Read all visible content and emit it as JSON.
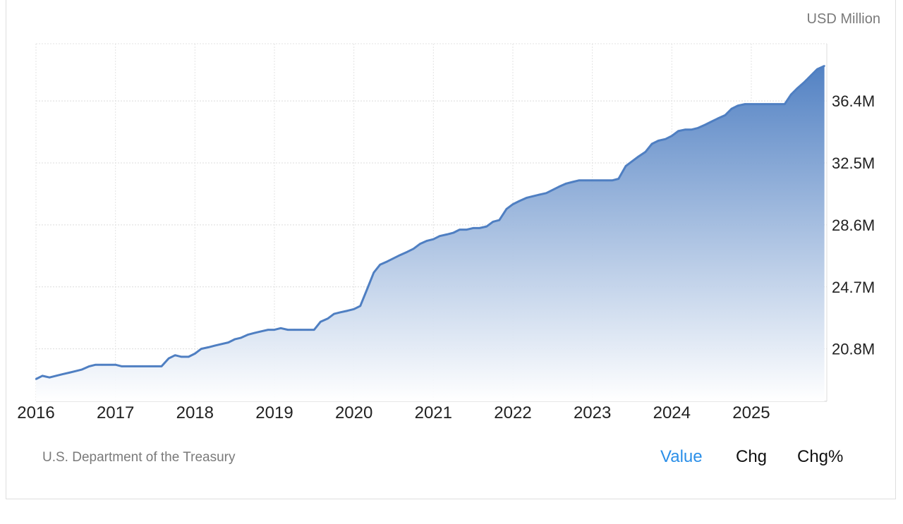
{
  "unit_label": "USD Million",
  "source": "U.S. Department of the Treasury",
  "toggles": [
    "Value",
    "Chg",
    "Chg%"
  ],
  "active_toggle": "Value",
  "colors": {
    "line": "#4f7fc2",
    "fill_top": "#4f7fc2",
    "fill_bottom": "#ffffff",
    "grid": "#d9d9d9",
    "active_toggle": "#2b8fe8"
  },
  "chart_data": {
    "type": "area",
    "title": "",
    "xlabel": "",
    "ylabel": "",
    "y_tick_labels": [
      "20.8M",
      "24.7M",
      "28.6M",
      "32.5M",
      "36.4M"
    ],
    "y_ticks": [
      20.8,
      24.7,
      28.6,
      32.5,
      36.4
    ],
    "ylim": [
      17.5,
      40.0
    ],
    "x_tick_labels": [
      "2016",
      "2017",
      "2018",
      "2019",
      "2020",
      "2021",
      "2022",
      "2023",
      "2024",
      "2025"
    ],
    "xlim": [
      2016.0,
      2025.95
    ],
    "grid": true,
    "series": [
      {
        "x": [
          2016.0,
          2016.08,
          2016.17,
          2016.25,
          2016.33,
          2016.42,
          2016.5,
          2016.58,
          2016.67,
          2016.75,
          2016.83,
          2016.92,
          2017.0,
          2017.08,
          2017.17,
          2017.25,
          2017.33,
          2017.42,
          2017.5,
          2017.58,
          2017.67,
          2017.75,
          2017.83,
          2017.92,
          2018.0,
          2018.08,
          2018.17,
          2018.25,
          2018.33,
          2018.42,
          2018.5,
          2018.58,
          2018.67,
          2018.75,
          2018.83,
          2018.92,
          2019.0,
          2019.08,
          2019.17,
          2019.25,
          2019.33,
          2019.42,
          2019.5,
          2019.58,
          2019.67,
          2019.75,
          2019.83,
          2019.92,
          2020.0,
          2020.08,
          2020.17,
          2020.25,
          2020.33,
          2020.42,
          2020.5,
          2020.58,
          2020.67,
          2020.75,
          2020.83,
          2020.92,
          2021.0,
          2021.08,
          2021.17,
          2021.25,
          2021.33,
          2021.42,
          2021.5,
          2021.58,
          2021.67,
          2021.75,
          2021.83,
          2021.92,
          2022.0,
          2022.08,
          2022.17,
          2022.25,
          2022.33,
          2022.42,
          2022.5,
          2022.58,
          2022.67,
          2022.75,
          2022.83,
          2022.92,
          2023.0,
          2023.08,
          2023.17,
          2023.25,
          2023.33,
          2023.42,
          2023.5,
          2023.58,
          2023.67,
          2023.75,
          2023.83,
          2023.92,
          2024.0,
          2024.08,
          2024.17,
          2024.25,
          2024.33,
          2024.42,
          2024.5,
          2024.58,
          2024.67,
          2024.75,
          2024.83,
          2024.92,
          2025.0,
          2025.08,
          2025.17,
          2025.25,
          2025.33,
          2025.42,
          2025.5,
          2025.58,
          2025.67,
          2025.75,
          2025.83,
          2025.92
        ],
        "values": [
          18.9,
          19.1,
          19.0,
          19.1,
          19.2,
          19.3,
          19.4,
          19.5,
          19.7,
          19.8,
          19.8,
          19.8,
          19.8,
          19.7,
          19.7,
          19.7,
          19.7,
          19.7,
          19.7,
          19.7,
          20.2,
          20.4,
          20.3,
          20.3,
          20.5,
          20.8,
          20.9,
          21.0,
          21.1,
          21.2,
          21.4,
          21.5,
          21.7,
          21.8,
          21.9,
          22.0,
          22.0,
          22.1,
          22.0,
          22.0,
          22.0,
          22.0,
          22.0,
          22.5,
          22.7,
          23.0,
          23.1,
          23.2,
          23.3,
          23.5,
          24.6,
          25.6,
          26.1,
          26.3,
          26.5,
          26.7,
          26.9,
          27.1,
          27.4,
          27.6,
          27.7,
          27.9,
          28.0,
          28.1,
          28.3,
          28.3,
          28.4,
          28.4,
          28.5,
          28.8,
          28.9,
          29.6,
          29.9,
          30.1,
          30.3,
          30.4,
          30.5,
          30.6,
          30.8,
          31.0,
          31.2,
          31.3,
          31.4,
          31.4,
          31.4,
          31.4,
          31.4,
          31.4,
          31.5,
          32.3,
          32.6,
          32.9,
          33.2,
          33.7,
          33.9,
          34.0,
          34.2,
          34.5,
          34.6,
          34.6,
          34.7,
          34.9,
          35.1,
          35.3,
          35.5,
          35.9,
          36.1,
          36.2,
          36.2,
          36.2,
          36.2,
          36.2,
          36.2,
          36.2,
          36.8,
          37.2,
          37.6,
          38.0,
          38.4,
          38.6
        ]
      }
    ]
  }
}
